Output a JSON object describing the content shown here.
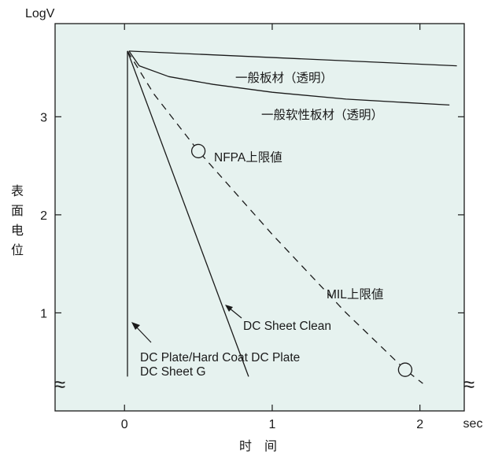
{
  "chart_data": {
    "type": "line",
    "y_scale": "log",
    "ylabel": "LogV",
    "ylabel_side": [
      "表",
      "面",
      "电",
      "位"
    ],
    "xlabel": "时　间",
    "x_unit": "sec",
    "xlim": [
      -0.47,
      2.3
    ],
    "ylim": [
      0.0,
      3.95
    ],
    "x_ticks": [
      "0",
      "1",
      "2"
    ],
    "y_ticks": [
      "1",
      "2",
      "3"
    ],
    "grid": false,
    "background": "#e6f2ef",
    "series": [
      {
        "name": "一般板材（透明）",
        "style": "solid",
        "x": [
          0.03,
          2.25
        ],
        "y": [
          3.67,
          3.52
        ]
      },
      {
        "name": "一般软性板材（透明）",
        "style": "solid",
        "x": [
          0.03,
          0.1,
          0.3,
          0.6,
          1.0,
          1.5,
          2.2
        ],
        "y": [
          3.67,
          3.52,
          3.41,
          3.33,
          3.25,
          3.18,
          3.12
        ]
      },
      {
        "name": "DC Plate/Hard Coat DC Plate DC Sheet G",
        "style": "solid",
        "x": [
          0.02,
          0.02
        ],
        "y": [
          3.67,
          0.35
        ]
      },
      {
        "name": "DC Sheet Clean",
        "style": "solid",
        "x": [
          0.02,
          0.84
        ],
        "y": [
          3.67,
          0.35
        ]
      },
      {
        "name": "NFPA/MIL上限値",
        "style": "dashed",
        "x": [
          0.02,
          0.2,
          0.5,
          1.0,
          1.5,
          1.9,
          2.02
        ],
        "y": [
          3.67,
          3.23,
          2.65,
          1.8,
          1.0,
          0.42,
          0.28
        ]
      }
    ],
    "markers": [
      {
        "label": "NFPA上限値",
        "x": 0.5,
        "y": 2.65
      },
      {
        "label": "MIL上限値",
        "x": 1.9,
        "y": 0.42
      }
    ],
    "annotations": [
      "一般板材（透明）",
      "一般软性板材（透明）",
      "NFPA上限値",
      "MIL上限値",
      "DC Sheet Clean",
      "DC Plate/Hard Coat DC Plate",
      "DC Sheet G"
    ],
    "axis_break_symbol": "≈"
  }
}
